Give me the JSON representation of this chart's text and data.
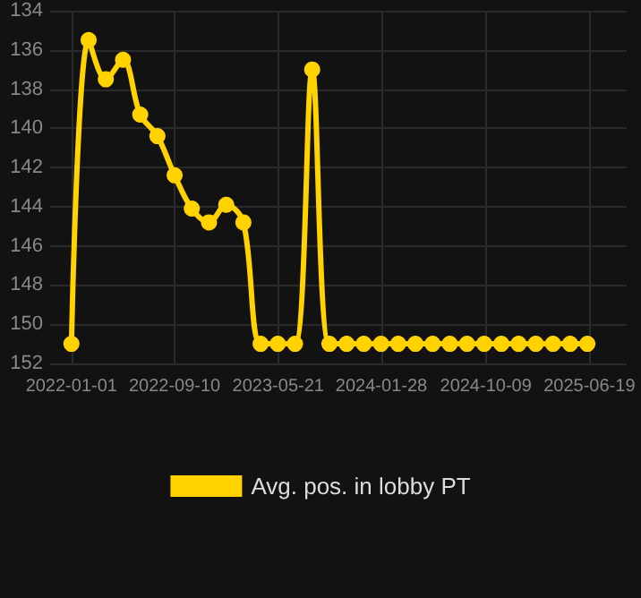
{
  "chart_data": {
    "type": "line",
    "x": [
      "2022-01-01",
      "2022-02-12",
      "2022-03-26",
      "2022-05-07",
      "2022-06-18",
      "2022-07-30",
      "2022-09-10",
      "2022-10-22",
      "2022-12-03",
      "2023-01-14",
      "2023-02-25",
      "2023-04-08",
      "2023-05-20",
      "2023-07-01",
      "2023-08-12",
      "2023-09-23",
      "2023-11-04",
      "2023-12-16",
      "2024-01-27",
      "2024-03-09",
      "2024-04-20",
      "2024-06-01",
      "2024-07-13",
      "2024-08-24",
      "2024-10-05",
      "2024-11-16",
      "2024-12-28",
      "2025-02-08",
      "2025-03-22",
      "2025-05-03",
      "2025-06-14"
    ],
    "series": [
      {
        "name": "Avg. pos. in lobby PT",
        "color": "#ffd200",
        "values": [
          151,
          135.5,
          137.5,
          136.5,
          139.3,
          140.4,
          142.4,
          144.1,
          144.8,
          143.9,
          144.8,
          151,
          151,
          151,
          137,
          151,
          151,
          151,
          151,
          151,
          151,
          151,
          151,
          151,
          151,
          151,
          151,
          151,
          151,
          151,
          151
        ]
      }
    ],
    "ylim": [
      152,
      134
    ],
    "yticks": [
      134,
      136,
      138,
      140,
      142,
      144,
      146,
      148,
      150,
      152
    ],
    "xlim": [
      "2021-11-10",
      "2025-09-18"
    ],
    "xticks": [
      {
        "value": "2022-01-01",
        "label": "2022-01-01"
      },
      {
        "value": "2022-09-10",
        "label": "2022-09-10"
      },
      {
        "value": "2023-05-21",
        "label": "2023-05-21"
      },
      {
        "value": "2024-01-28",
        "label": "2024-01-28"
      },
      {
        "value": "2024-10-09",
        "label": "2024-10-09"
      },
      {
        "value": "2025-06-19",
        "label": "2025-06-19"
      }
    ],
    "grid": true,
    "legend": "bottom",
    "marker": "circle",
    "line_style": "solid"
  }
}
